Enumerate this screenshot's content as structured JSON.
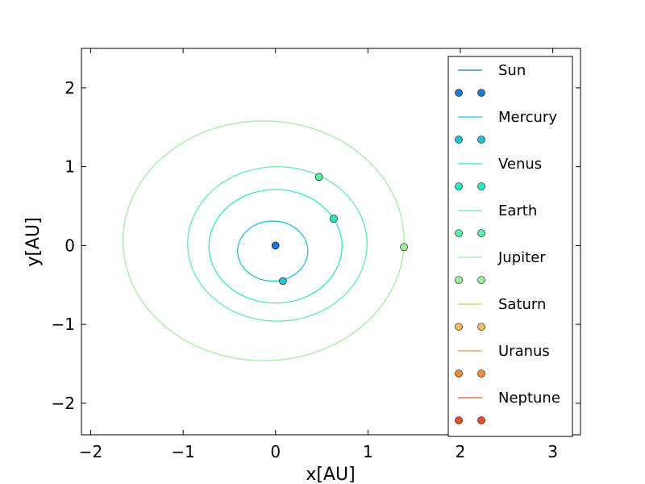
{
  "chart_data": {
    "type": "line",
    "xlabel": "x[AU]",
    "ylabel": "y[AU]",
    "xlim": [
      -2.1,
      3.3
    ],
    "ylim": [
      -2.4,
      2.5
    ],
    "xticks": [
      -2,
      -1,
      0,
      1,
      2,
      3
    ],
    "xtick_labels": [
      "−2",
      "−1",
      "0",
      "1",
      "2",
      "3"
    ],
    "yticks": [
      -2,
      -1,
      0,
      1,
      2
    ],
    "ytick_labels": [
      "−2",
      "−1",
      "0",
      "1",
      "2"
    ],
    "grid": false,
    "legend_position": "right",
    "legend_entries": [
      "Sun",
      "Mercury",
      "Venus",
      "Earth",
      "Jupiter",
      "Saturn",
      "Uranus",
      "Neptune"
    ],
    "series": [
      {
        "name": "Sun",
        "color": "#1f78d1",
        "orbit": null,
        "position": [
          0.0,
          0.0
        ]
      },
      {
        "name": "Mercury",
        "color": "#1ec4dc",
        "orbit": {
          "cx": -0.03,
          "cy": -0.07,
          "rx": 0.38,
          "ry": 0.38
        },
        "position": [
          0.08,
          -0.45
        ]
      },
      {
        "name": "Venus",
        "color": "#2ee8c4",
        "orbit": {
          "cx": 0.0,
          "cy": -0.01,
          "rx": 0.72,
          "ry": 0.72
        },
        "position": [
          0.63,
          0.34
        ]
      },
      {
        "name": "Earth",
        "color": "#5cf0a8",
        "orbit": {
          "cx": 0.02,
          "cy": 0.02,
          "rx": 0.97,
          "ry": 0.98
        },
        "position": [
          0.47,
          0.87
        ]
      },
      {
        "name": "Jupiter",
        "color": "#9ef09c",
        "orbit": {
          "cx": -0.13,
          "cy": 0.06,
          "rx": 1.52,
          "ry": 1.52
        },
        "position": [
          1.39,
          -0.02
        ]
      },
      {
        "name": "Saturn",
        "color": "#f0c060",
        "orbit": null,
        "position": null
      },
      {
        "name": "Uranus",
        "color": "#f08a3c",
        "orbit": null,
        "position": null
      },
      {
        "name": "Neptune",
        "color": "#f04a28",
        "orbit": null,
        "position": null
      }
    ]
  }
}
